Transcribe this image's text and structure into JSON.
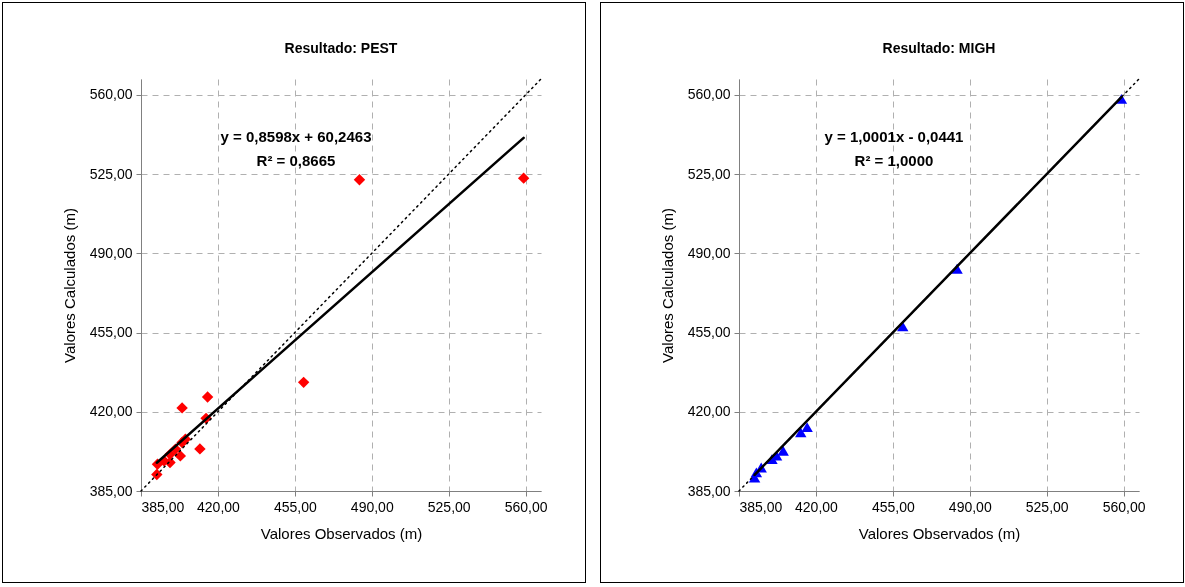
{
  "chart_data": [
    {
      "type": "scatter",
      "title": "Resultado: PEST",
      "xlabel": "Valores Observados (m)",
      "ylabel": "Valores Calculados (m)",
      "xlim": [
        385,
        567
      ],
      "ylim": [
        385,
        567
      ],
      "xticks": [
        {
          "value": 385,
          "label": "385,00"
        },
        {
          "value": 420,
          "label": "420,00"
        },
        {
          "value": 455,
          "label": "455,00"
        },
        {
          "value": 490,
          "label": "490,00"
        },
        {
          "value": 525,
          "label": "525,00"
        },
        {
          "value": 560,
          "label": "560,00"
        }
      ],
      "yticks": [
        {
          "value": 385,
          "label": "385,00"
        },
        {
          "value": 420,
          "label": "420,00"
        },
        {
          "value": 455,
          "label": "455,00"
        },
        {
          "value": 490,
          "label": "490,00"
        },
        {
          "value": 525,
          "label": "525,00"
        },
        {
          "value": 560,
          "label": "560,00"
        }
      ],
      "grid": true,
      "series": [
        {
          "color": "#ff0000",
          "marker": "diamond",
          "x": [
            484.4,
            559.1,
            459,
            415.3,
            403.7,
            414.6,
            411.8,
            403.7,
            400.7,
            398.2,
            402.9,
            395.5,
            398.2,
            392.5,
            392.2,
            405.2
          ],
          "values": [
            522.5,
            523.2,
            433,
            426.5,
            421.7,
            417.1,
            403.6,
            406.4,
            403.5,
            401.2,
            400.5,
            398.3,
            397.6,
            396.8,
            392.3,
            407.9
          ]
        },
        {
          "type": "line",
          "color": "#000000",
          "line_style": "solid",
          "x": [
            392.2,
            559.1
          ],
          "values": [
            397.5,
            541
          ]
        },
        {
          "type": "line",
          "color": "#000000",
          "line_style": "dotted",
          "x": [
            385,
            567
          ],
          "values": [
            385,
            567
          ]
        }
      ],
      "annotations": [
        "y = 0,8598x + 60,2463",
        "R² = 0,8665"
      ]
    },
    {
      "type": "scatter",
      "title": "Resultado: MIGH",
      "xlabel": "Valores Observados (m)",
      "ylabel": "Valores Calculados (m)",
      "xlim": [
        385,
        567
      ],
      "ylim": [
        385,
        567
      ],
      "xticks": [
        {
          "value": 385,
          "label": "385,00"
        },
        {
          "value": 420,
          "label": "420,00"
        },
        {
          "value": 455,
          "label": "455,00"
        },
        {
          "value": 490,
          "label": "490,00"
        },
        {
          "value": 525,
          "label": "525,00"
        },
        {
          "value": 560,
          "label": "560,00"
        }
      ],
      "yticks": [
        {
          "value": 385,
          "label": "385,00"
        },
        {
          "value": 420,
          "label": "420,00"
        },
        {
          "value": 455,
          "label": "455,00"
        },
        {
          "value": 490,
          "label": "490,00"
        },
        {
          "value": 525,
          "label": "525,00"
        },
        {
          "value": 560,
          "label": "560,00"
        }
      ],
      "grid": true,
      "series": [
        {
          "color": "#0000ff",
          "marker": "triangle",
          "x": [
            559,
            484.2,
            459.5,
            416,
            413.1,
            405.1,
            402.1,
            400,
            395.1,
            392.9,
            392.1
          ],
          "values": [
            558.2,
            483.2,
            457.7,
            413.2,
            410.9,
            402.8,
            400.6,
            399.1,
            395.4,
            393.2,
            390.9
          ]
        },
        {
          "type": "line",
          "color": "#000000",
          "line_style": "solid",
          "x": [
            392.1,
            559
          ],
          "values": [
            392.1,
            559
          ]
        },
        {
          "type": "line",
          "color": "#000000",
          "line_style": "dotted",
          "x": [
            385,
            567
          ],
          "values": [
            385,
            567
          ]
        }
      ],
      "annotations": [
        "y = 1,0001x - 0,0441",
        "R² = 1,0000"
      ]
    }
  ]
}
